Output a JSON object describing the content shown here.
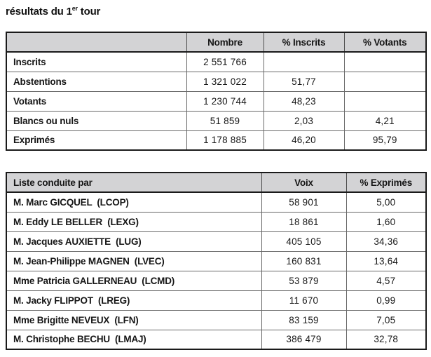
{
  "page": {
    "title_main": "résultats du 1",
    "title_sup": "er",
    "title_rest": " tour"
  },
  "colors": {
    "header_bg": "#d3d3d5",
    "grid_line": "#696969",
    "outer_border": "#1a1a1a",
    "text": "#161616",
    "page_bg": "#ffffff"
  },
  "summary_table": {
    "headers": [
      "",
      "Nombre",
      "% Inscrits",
      "% Votants"
    ],
    "rows": [
      {
        "label": "Inscrits",
        "nombre": "2 551 766",
        "pct_inscrits": "",
        "pct_votants": ""
      },
      {
        "label": "Abstentions",
        "nombre": "1 321 022",
        "pct_inscrits": "51,77",
        "pct_votants": ""
      },
      {
        "label": "Votants",
        "nombre": "1 230 744",
        "pct_inscrits": "48,23",
        "pct_votants": ""
      },
      {
        "label": "Blancs ou nuls",
        "nombre": "51 859",
        "pct_inscrits": "2,03",
        "pct_votants": "4,21"
      },
      {
        "label": "Exprimés",
        "nombre": "1 178 885",
        "pct_inscrits": "46,20",
        "pct_votants": "95,79"
      }
    ]
  },
  "results_table": {
    "headers": [
      "Liste conduite par",
      "Voix",
      "% Exprimés"
    ],
    "rows": [
      {
        "label": "M. Marc GICQUEL  (LCOP)",
        "voix": "58 901",
        "pct_exprimes": "5,00"
      },
      {
        "label": "M. Eddy LE BELLER  (LEXG)",
        "voix": "18 861",
        "pct_exprimes": "1,60"
      },
      {
        "label": "M. Jacques AUXIETTE  (LUG)",
        "voix": "405 105",
        "pct_exprimes": "34,36"
      },
      {
        "label": "M. Jean-Philippe MAGNEN  (LVEC)",
        "voix": "160 831",
        "pct_exprimes": "13,64"
      },
      {
        "label": "Mme Patricia GALLERNEAU  (LCMD)",
        "voix": "53 879",
        "pct_exprimes": "4,57"
      },
      {
        "label": "M. Jacky FLIPPOT  (LREG)",
        "voix": "11 670",
        "pct_exprimes": "0,99"
      },
      {
        "label": "Mme Brigitte NEVEUX  (LFN)",
        "voix": "83 159",
        "pct_exprimes": "7,05"
      },
      {
        "label": "M. Christophe BECHU  (LMAJ)",
        "voix": "386 479",
        "pct_exprimes": "32,78"
      }
    ]
  }
}
